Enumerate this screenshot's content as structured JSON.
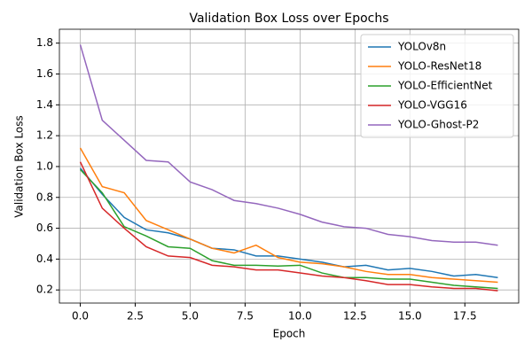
{
  "chart_data": {
    "type": "line",
    "title": "Validation Box Loss over Epochs",
    "x_label": "Epoch",
    "y_label": "Validation Box Loss",
    "x": [
      0,
      1,
      2,
      3,
      4,
      5,
      6,
      7,
      8,
      9,
      10,
      11,
      12,
      13,
      14,
      15,
      16,
      17,
      18,
      19
    ],
    "series": [
      {
        "name": "YOLOv8n",
        "color": "#1f77b4",
        "values": [
          0.99,
          0.82,
          0.67,
          0.59,
          0.57,
          0.53,
          0.47,
          0.46,
          0.42,
          0.42,
          0.4,
          0.38,
          0.35,
          0.36,
          0.33,
          0.34,
          0.32,
          0.29,
          0.3,
          0.28
        ]
      },
      {
        "name": "YOLO-ResNet18",
        "color": "#ff7f0e",
        "values": [
          1.12,
          0.87,
          0.83,
          0.65,
          0.59,
          0.53,
          0.47,
          0.44,
          0.49,
          0.41,
          0.38,
          0.37,
          0.35,
          0.32,
          0.3,
          0.3,
          0.28,
          0.27,
          0.26,
          0.25
        ]
      },
      {
        "name": "YOLO-EfficientNet",
        "color": "#2ca02c",
        "values": [
          0.98,
          0.83,
          0.61,
          0.55,
          0.48,
          0.47,
          0.39,
          0.36,
          0.36,
          0.355,
          0.36,
          0.31,
          0.28,
          0.28,
          0.27,
          0.27,
          0.25,
          0.23,
          0.22,
          0.21
        ]
      },
      {
        "name": "YOLO-VGG16",
        "color": "#d62728",
        "values": [
          1.03,
          0.73,
          0.6,
          0.48,
          0.42,
          0.41,
          0.36,
          0.35,
          0.33,
          0.33,
          0.31,
          0.29,
          0.28,
          0.26,
          0.235,
          0.235,
          0.22,
          0.21,
          0.21,
          0.195
        ]
      },
      {
        "name": "YOLO-Ghost-P2",
        "color": "#9467bd",
        "values": [
          1.79,
          1.3,
          1.17,
          1.04,
          1.03,
          0.9,
          0.85,
          0.78,
          0.76,
          0.73,
          0.69,
          0.64,
          0.61,
          0.6,
          0.56,
          0.545,
          0.52,
          0.51,
          0.51,
          0.49
        ]
      }
    ],
    "xlim": [
      -0.95,
      19.95
    ],
    "xticks": [
      {
        "value": 0,
        "label": "0.0"
      },
      2.5,
      {
        "value": 5,
        "label": "5.0"
      },
      7.5,
      {
        "value": 10,
        "label": "10.0"
      },
      12.5,
      {
        "value": 15,
        "label": "15.0"
      },
      17.5
    ],
    "ylim": [
      0.115,
      1.89
    ],
    "yticks": [
      0.2,
      0.4,
      0.6,
      0.8,
      {
        "value": 1,
        "label": "1.0"
      },
      1.2,
      1.4,
      1.6,
      1.8
    ],
    "grid": true,
    "legend": "upper-right"
  }
}
